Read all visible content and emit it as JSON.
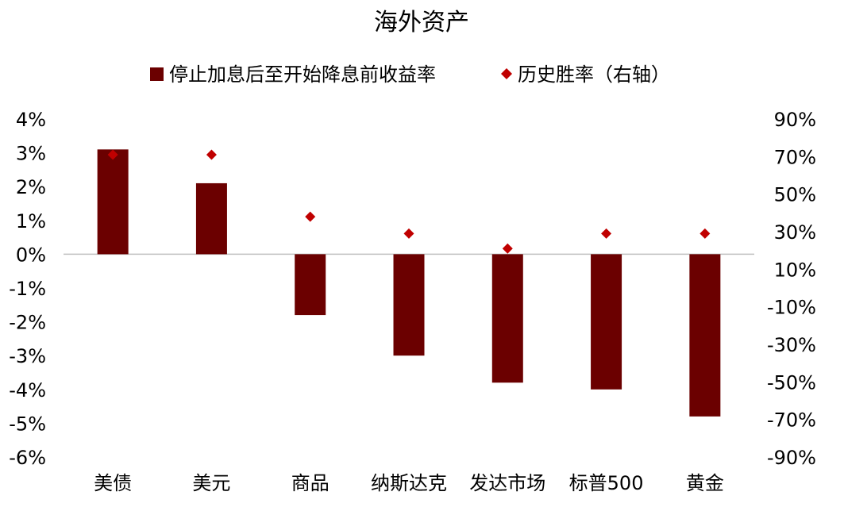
{
  "chart_data": {
    "type": "bar",
    "title": "海外资产",
    "categories": [
      "美债",
      "美元",
      "商品",
      "纳斯达克",
      "发达市场",
      "标普500",
      "黄金"
    ],
    "series": [
      {
        "name": "停止加息后至开始降息前收益率",
        "type": "bar",
        "axis": "left",
        "color": "#6B0000",
        "values": [
          3.1,
          2.1,
          -1.8,
          -3.0,
          -3.8,
          -4.0,
          -4.8
        ]
      },
      {
        "name": "历史胜率（右轴）",
        "type": "scatter",
        "marker": "diamond",
        "axis": "right",
        "color": "#C00000",
        "values": [
          71,
          71,
          38,
          29,
          21,
          29,
          29
        ]
      }
    ],
    "y_left": {
      "range": [
        -6,
        4
      ],
      "ticks": [
        4,
        3,
        2,
        1,
        0,
        -1,
        -2,
        -3,
        -4,
        -5,
        -6
      ],
      "tick_labels": [
        "4%",
        "3%",
        "2%",
        "1%",
        "0%",
        "-1%",
        "-2%",
        "-3%",
        "-4%",
        "-5%",
        "-6%"
      ]
    },
    "y_right": {
      "range": [
        -90,
        90
      ],
      "ticks": [
        90,
        70,
        50,
        30,
        10,
        -10,
        -30,
        -50,
        -70,
        -90
      ],
      "tick_labels": [
        "90%",
        "70%",
        "50%",
        "30%",
        "10%",
        "-10%",
        "-30%",
        "-50%",
        "-70%",
        "-90%"
      ]
    },
    "grid": false,
    "legend_position": "top"
  }
}
